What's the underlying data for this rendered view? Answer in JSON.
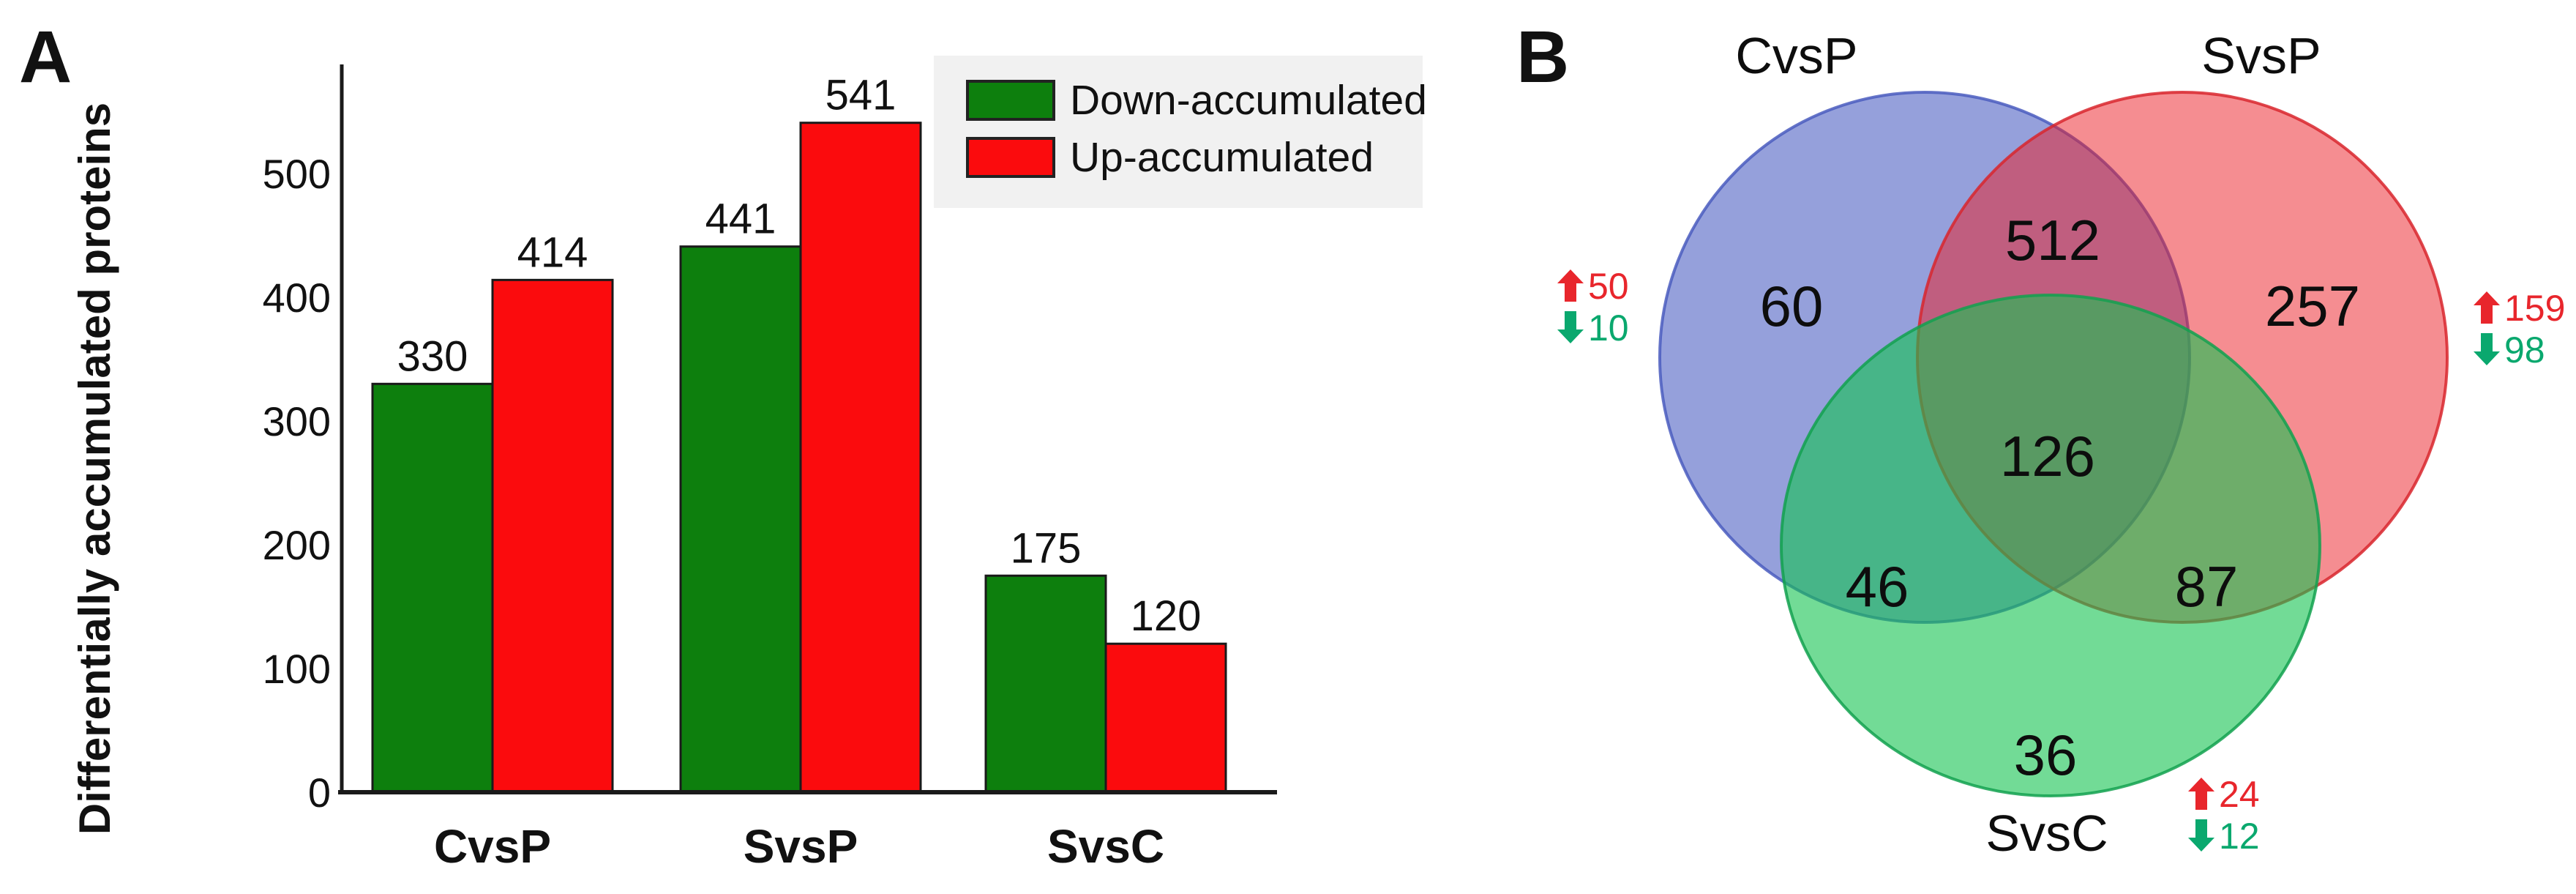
{
  "figure": {
    "panel_a_label": "A",
    "panel_b_label": "B"
  },
  "colors": {
    "down_green": "#0d7f0d",
    "up_red": "#fb0b0d",
    "bar_border": "#1a1a1a",
    "axis": "#1a1a1a",
    "text": "#111111",
    "legend_bg": "#f1f1f1",
    "venn_blue_fill": "rgba(62,82,190,0.55)",
    "venn_blue_stroke": "#4a5cbe",
    "venn_red_fill": "rgba(236,28,36,0.5)",
    "venn_red_stroke": "#d8262d",
    "venn_green_fill": "rgba(20,195,80,0.6)",
    "venn_green_stroke": "#12a14f",
    "annotation_up_red": "#e8262c",
    "annotation_down_green": "#0aa86e"
  },
  "chart_data": [
    {
      "type": "bar",
      "panel": "A",
      "title": "",
      "xlabel": "",
      "ylabel": "Differentially accumulated proteins",
      "categories": [
        "CvsP",
        "SvsP",
        "SvsC"
      ],
      "series": [
        {
          "name": "Down-accumulated",
          "color_key": "down_green",
          "values": [
            330,
            441,
            175
          ]
        },
        {
          "name": "Up-accumulated",
          "color_key": "up_red",
          "values": [
            414,
            541,
            120
          ]
        }
      ],
      "yticks": [
        0,
        100,
        200,
        300,
        400,
        500
      ],
      "ylim": [
        0,
        575
      ],
      "grid": false,
      "legend_position": "top-right",
      "value_labels_shown": true
    },
    {
      "type": "venn",
      "panel": "B",
      "sets": [
        {
          "label": "CvsP",
          "color_key": "blue",
          "unique": 60,
          "up": 50,
          "down": 10
        },
        {
          "label": "SvsP",
          "color_key": "red",
          "unique": 257,
          "up": 159,
          "down": 98
        },
        {
          "label": "SvsC",
          "color_key": "green",
          "unique": 36,
          "up": 24,
          "down": 12
        }
      ],
      "overlaps": [
        {
          "between": [
            "CvsP",
            "SvsP"
          ],
          "value": 512
        },
        {
          "between": [
            "CvsP",
            "SvsC"
          ],
          "value": 46
        },
        {
          "between": [
            "SvsP",
            "SvsC"
          ],
          "value": 87
        },
        {
          "between": [
            "CvsP",
            "SvsP",
            "SvsC"
          ],
          "value": 126
        }
      ]
    }
  ]
}
